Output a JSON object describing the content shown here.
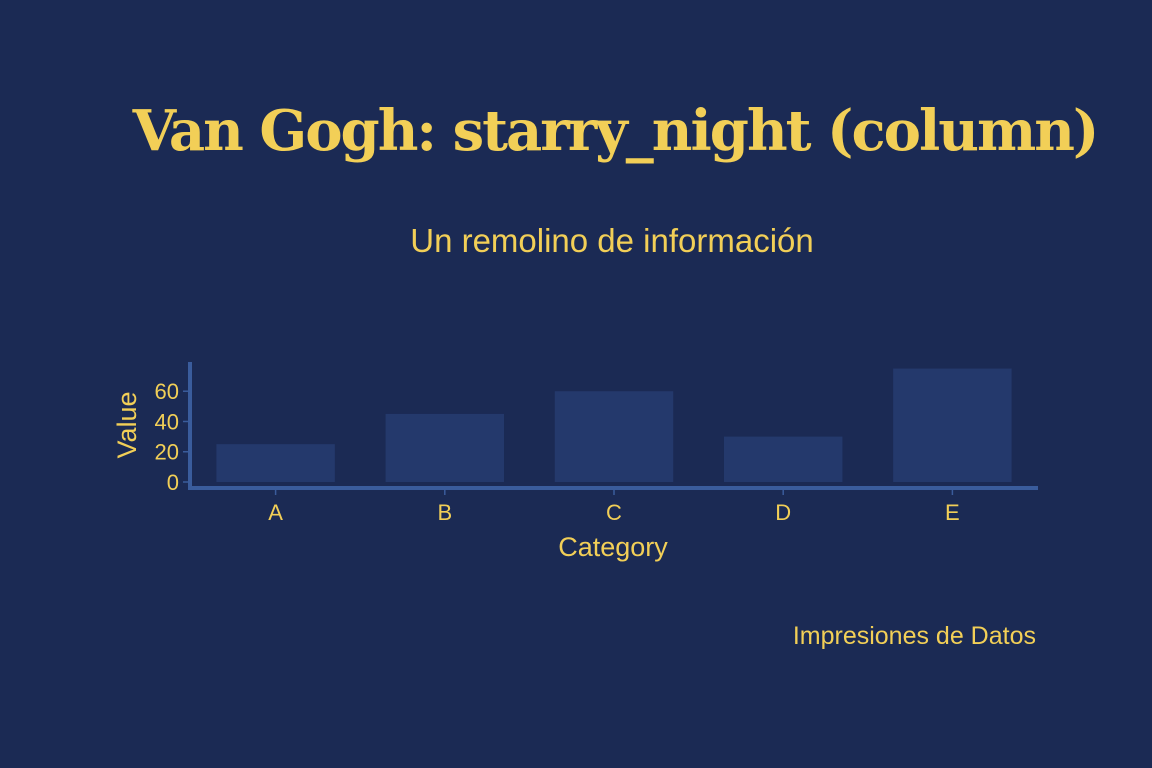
{
  "title": "Van Gogh: starry_night (column)",
  "subtitle": "Un remolino de información",
  "caption": "Impresiones de Datos",
  "colors": {
    "background": "#1b2a54",
    "text": "#f2cf57",
    "bar": "#24396c",
    "axis": "#3a5c9c"
  },
  "chart_data": {
    "type": "bar",
    "categories": [
      "A",
      "B",
      "C",
      "D",
      "E"
    ],
    "values": [
      25,
      45,
      60,
      30,
      75
    ],
    "xlabel": "Category",
    "ylabel": "Value",
    "ylim": [
      0,
      78
    ],
    "yticks": [
      0,
      20,
      40,
      60
    ],
    "grid": false,
    "legend": "none"
  }
}
